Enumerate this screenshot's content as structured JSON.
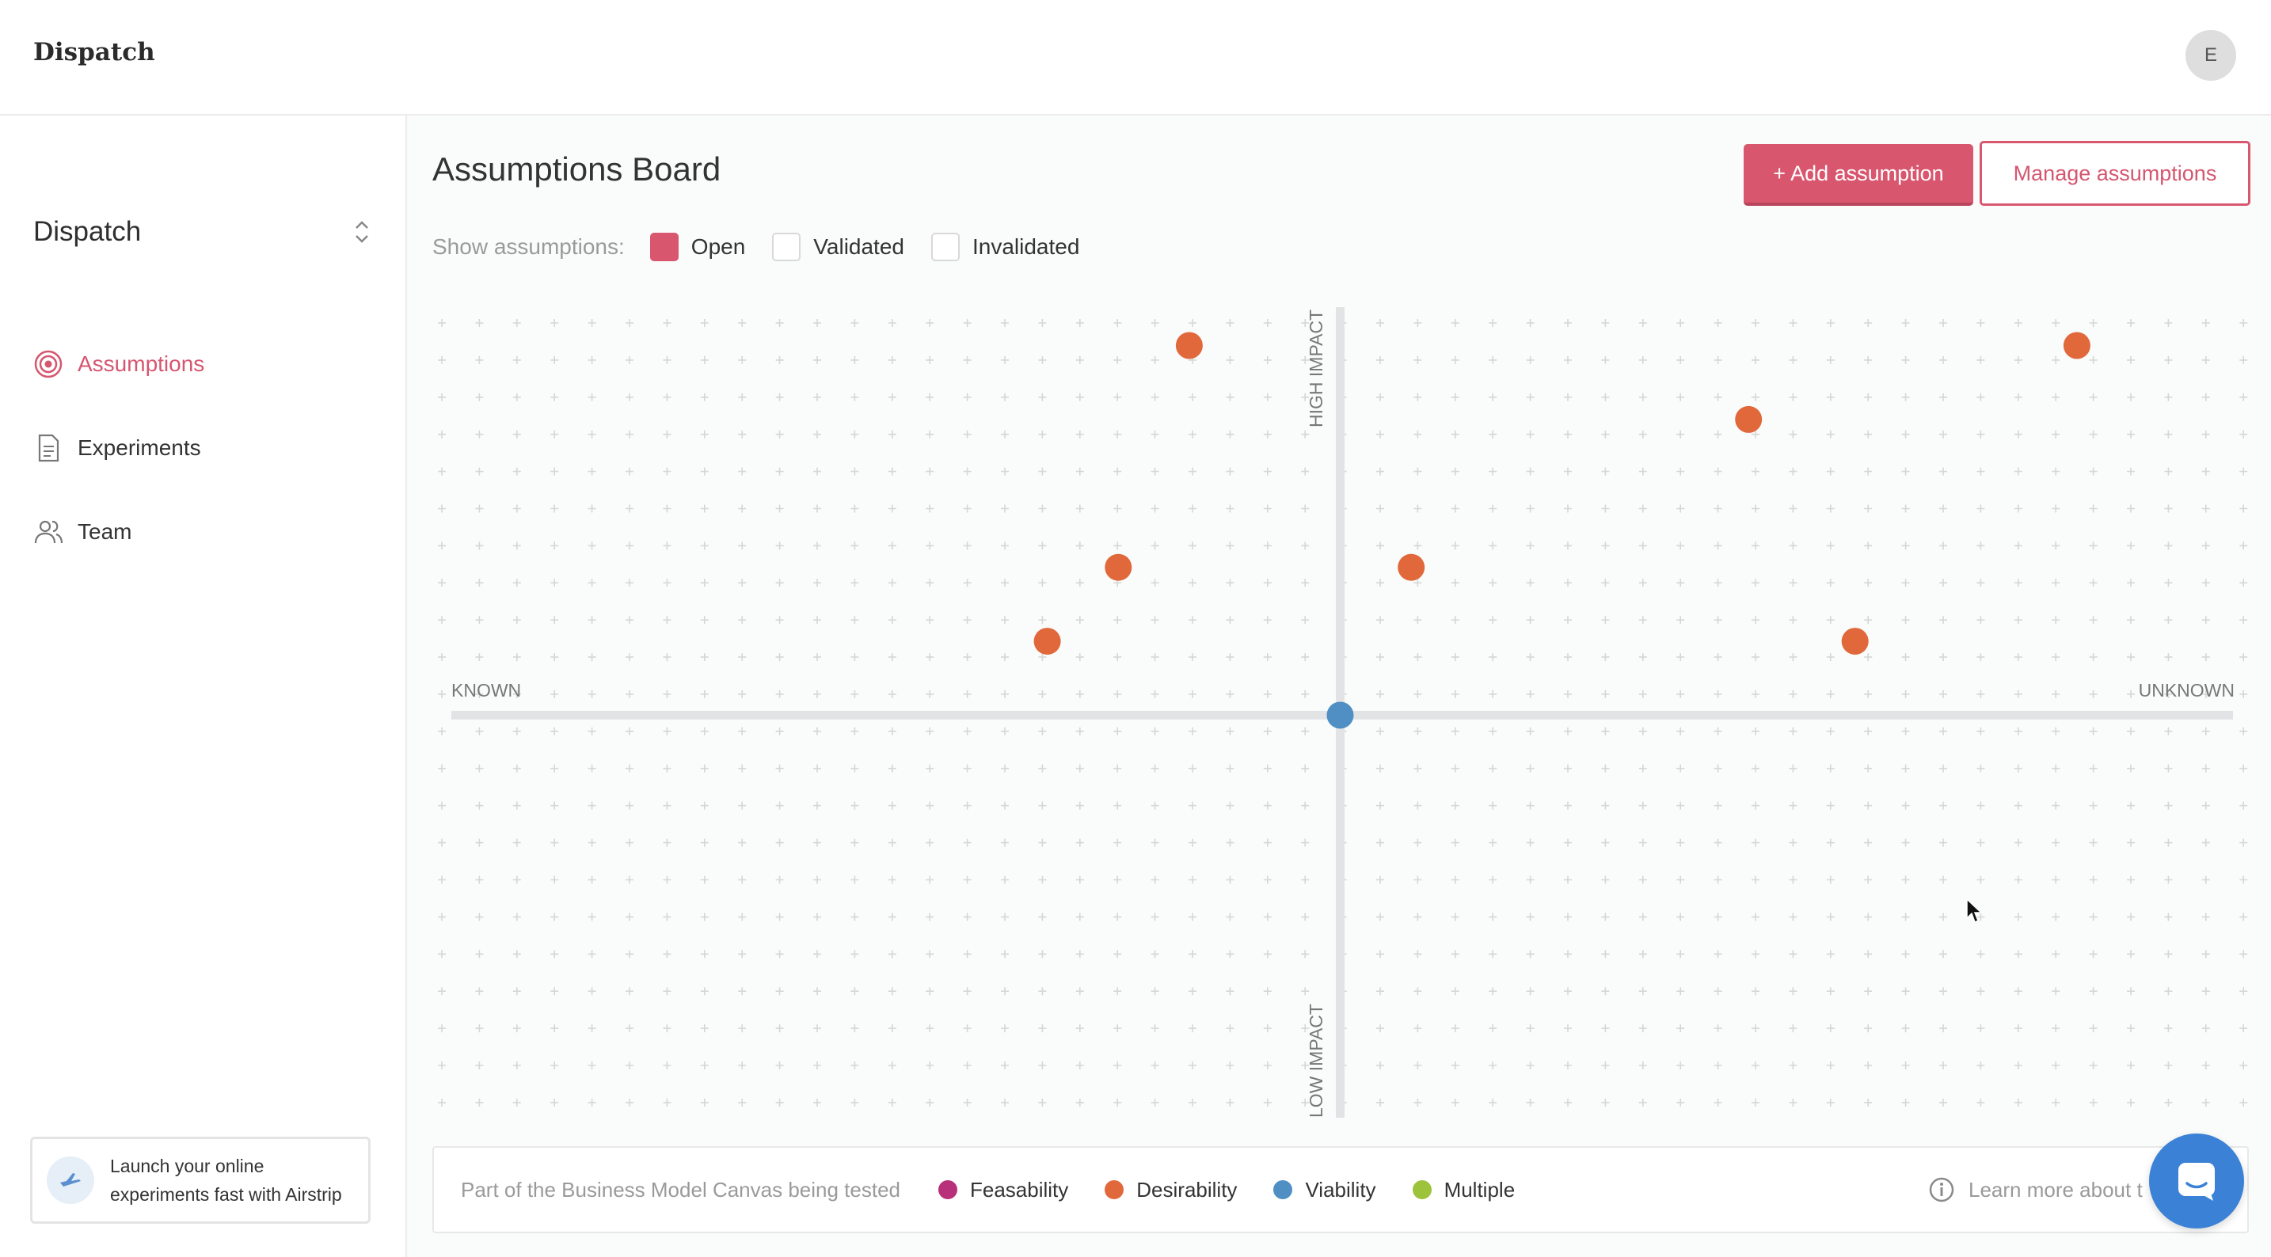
{
  "app": {
    "logo": "Dispatch",
    "avatar_initial": "E"
  },
  "sidebar": {
    "project_name": "Dispatch",
    "items": [
      {
        "label": "Assumptions",
        "icon": "target-icon",
        "active": true
      },
      {
        "label": "Experiments",
        "icon": "document-icon",
        "active": false
      },
      {
        "label": "Team",
        "icon": "users-icon",
        "active": false
      }
    ],
    "promo": {
      "line1": "Launch your online",
      "line2": "experiments fast with Airstrip",
      "icon": "plane-icon"
    }
  },
  "main": {
    "title": "Assumptions Board",
    "add_button": "+ Add assumption",
    "manage_button": "Manage assumptions",
    "filters": {
      "label": "Show assumptions:",
      "options": [
        {
          "label": "Open",
          "checked": true
        },
        {
          "label": "Validated",
          "checked": false
        },
        {
          "label": "Invalidated",
          "checked": false
        }
      ]
    }
  },
  "board": {
    "labels": {
      "high": "HIGH IMPACT",
      "low": "LOW IMPACT",
      "left": "KNOWN",
      "right": "UNKNOWN"
    },
    "colors": {
      "desirability": "#e0683a",
      "viability": "#4f8fc4",
      "feasability": "#b8307a",
      "multiple": "#9cc33b",
      "axis": "#e2e3e4",
      "grid": "#d6d6d6"
    },
    "points": [
      {
        "known": -0.17,
        "impact": 1.0,
        "category": "desirability"
      },
      {
        "known": 0.83,
        "impact": 1.0,
        "category": "desirability"
      },
      {
        "known": 0.46,
        "impact": 0.8,
        "category": "desirability"
      },
      {
        "known": -0.25,
        "impact": 0.4,
        "category": "desirability"
      },
      {
        "known": 0.08,
        "impact": 0.4,
        "category": "desirability"
      },
      {
        "known": -0.33,
        "impact": 0.2,
        "category": "desirability"
      },
      {
        "known": 0.58,
        "impact": 0.2,
        "category": "desirability"
      },
      {
        "known": 0.0,
        "impact": 0.0,
        "category": "viability"
      }
    ]
  },
  "legend": {
    "title": "Part of the Business Model Canvas being tested",
    "items": [
      {
        "label": "Feasability",
        "color": "#b8307a"
      },
      {
        "label": "Desirability",
        "color": "#e0683a"
      },
      {
        "label": "Viability",
        "color": "#4f8fc4"
      },
      {
        "label": "Multiple",
        "color": "#9cc33b"
      }
    ],
    "learn_more": "Learn more about t"
  }
}
